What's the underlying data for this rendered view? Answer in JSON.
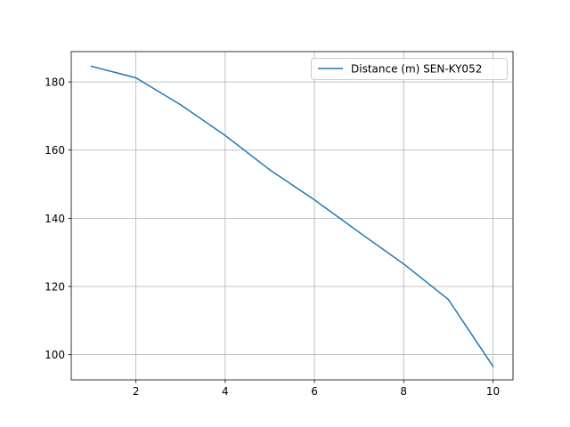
{
  "chart_data": {
    "type": "line",
    "title": "",
    "xlabel": "",
    "ylabel": "",
    "xlim": [
      0.55,
      10.45
    ],
    "ylim": [
      92.6,
      188.9
    ],
    "x_ticks": [
      2,
      4,
      6,
      8,
      10
    ],
    "y_ticks": [
      100,
      120,
      140,
      160,
      180
    ],
    "grid": true,
    "legend_position": "top-right",
    "series": [
      {
        "name": "Distance (m) SEN-KY052",
        "color": "#1f77b4",
        "x": [
          1,
          2,
          3,
          4,
          5,
          6,
          7,
          8,
          9,
          10
        ],
        "y": [
          184.6,
          181.2,
          173.3,
          164.3,
          154.2,
          145.4,
          135.9,
          126.6,
          116.2,
          96.6
        ]
      }
    ]
  }
}
